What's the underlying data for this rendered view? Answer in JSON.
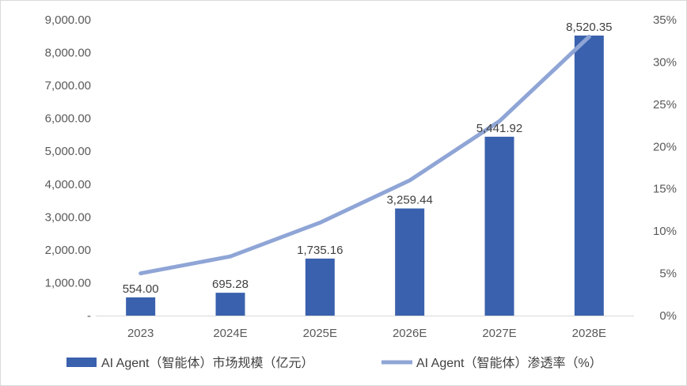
{
  "chart_data": {
    "type": "bar",
    "categories": [
      "2023",
      "2024E",
      "2025E",
      "2026E",
      "2027E",
      "2028E"
    ],
    "series": [
      {
        "name": "AI Agent（智能体）市场规模（亿元）",
        "type": "bar",
        "axis": "left",
        "values": [
          554.0,
          695.28,
          1735.16,
          3259.44,
          5441.92,
          8520.35
        ],
        "labels": [
          "554.00",
          "695.28",
          "1,735.16",
          "3,259.44",
          "5,441.92",
          "8,520.35"
        ]
      },
      {
        "name": "AI Agent（智能体）渗透率（%）",
        "type": "line",
        "axis": "right",
        "values": [
          5,
          7,
          11,
          16,
          23,
          33
        ]
      }
    ],
    "y_left": {
      "min": 0,
      "max": 9000,
      "step": 1000,
      "tick_labels": [
        "-",
        "1,000.00",
        "2,000.00",
        "3,000.00",
        "4,000.00",
        "5,000.00",
        "6,000.00",
        "7,000.00",
        "8,000.00",
        "9,000.00"
      ]
    },
    "y_right": {
      "min": 0,
      "max": 35,
      "step": 5,
      "tick_labels": [
        "0%",
        "5%",
        "10%",
        "15%",
        "20%",
        "25%",
        "30%",
        "35%"
      ]
    },
    "grid": false,
    "legend": "bottom",
    "colors": {
      "bar": "#3a61ad",
      "line": "#8fa5d6",
      "axis": "#d9d9d9",
      "text": "#595959"
    }
  }
}
